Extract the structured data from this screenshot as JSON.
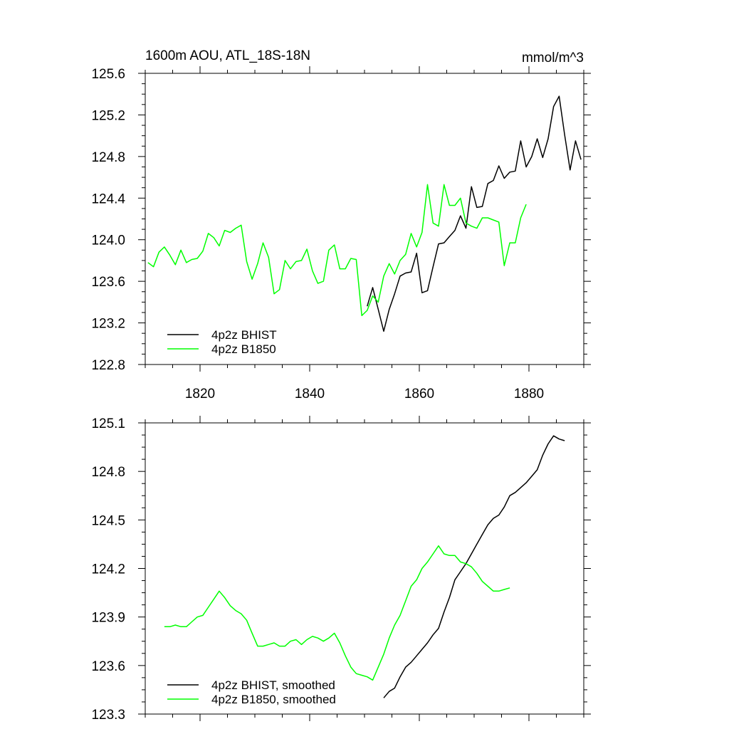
{
  "colors": {
    "bhist": "#000000",
    "b1850": "#00ff00",
    "axis": "#000000"
  },
  "chart_data": [
    {
      "type": "line",
      "title": "1600m AOU, ATL_18S-18N",
      "units": "mmol/m^3",
      "xlim": [
        1810,
        1890
      ],
      "ylim": [
        122.8,
        125.6
      ],
      "xticks": [
        1820,
        1840,
        1860,
        1880
      ],
      "yticks": [
        122.8,
        123.2,
        123.6,
        124.0,
        124.4,
        124.8,
        125.2,
        125.6
      ],
      "ytick_labels": [
        "122.8",
        "123.2",
        "123.6",
        "124.0",
        "124.4",
        "124.8",
        "125.2",
        "125.6"
      ],
      "legend_position": "bottom-left",
      "series": [
        {
          "name": "4p2z BHIST",
          "color": "#000000",
          "x": [
            1850.5,
            1851.5,
            1852.5,
            1853.5,
            1854.5,
            1855.5,
            1856.5,
            1857.5,
            1858.5,
            1859.5,
            1860.5,
            1861.5,
            1862.5,
            1863.5,
            1864.5,
            1865.5,
            1866.5,
            1867.5,
            1868.5,
            1869.5,
            1870.5,
            1871.5,
            1872.5,
            1873.5,
            1874.5,
            1875.5,
            1876.5,
            1877.5,
            1878.5,
            1879.5,
            1880.5,
            1881.5,
            1882.5,
            1883.5,
            1884.5,
            1885.5,
            1886.5,
            1887.5,
            1888.5,
            1889.5
          ],
          "y": [
            123.36,
            123.54,
            123.33,
            123.12,
            123.33,
            123.48,
            123.65,
            123.68,
            123.69,
            123.87,
            123.49,
            123.51,
            123.74,
            123.96,
            123.97,
            124.03,
            124.09,
            124.23,
            124.11,
            124.51,
            124.31,
            124.32,
            124.54,
            124.57,
            124.71,
            124.59,
            124.65,
            124.66,
            124.95,
            124.7,
            124.8,
            124.97,
            124.79,
            124.97,
            125.28,
            125.38,
            125.01,
            124.67,
            124.95,
            124.77
          ]
        },
        {
          "name": "4p2z B1850",
          "color": "#00ff00",
          "x": [
            1810.5,
            1811.5,
            1812.5,
            1813.5,
            1814.5,
            1815.5,
            1816.5,
            1817.5,
            1818.5,
            1819.5,
            1820.5,
            1821.5,
            1822.5,
            1823.5,
            1824.5,
            1825.5,
            1826.5,
            1827.5,
            1828.5,
            1829.5,
            1830.5,
            1831.5,
            1832.5,
            1833.5,
            1834.5,
            1835.5,
            1836.5,
            1837.5,
            1838.5,
            1839.5,
            1840.5,
            1841.5,
            1842.5,
            1843.5,
            1844.5,
            1845.5,
            1846.5,
            1847.5,
            1848.5,
            1849.5,
            1850.5,
            1851.5,
            1852.5,
            1853.5,
            1854.5,
            1855.5,
            1856.5,
            1857.5,
            1858.5,
            1859.5,
            1860.5,
            1861.5,
            1862.5,
            1863.5,
            1864.5,
            1865.5,
            1866.5,
            1867.5,
            1868.5,
            1869.5,
            1870.5,
            1871.5,
            1872.5,
            1873.5,
            1874.5,
            1875.5,
            1876.5,
            1877.5,
            1878.5,
            1879.5
          ],
          "y": [
            123.78,
            123.74,
            123.88,
            123.93,
            123.85,
            123.76,
            123.9,
            123.78,
            123.81,
            123.82,
            123.89,
            124.06,
            124.02,
            123.94,
            124.09,
            124.07,
            124.11,
            124.14,
            123.79,
            123.62,
            123.77,
            123.97,
            123.83,
            123.48,
            123.52,
            123.8,
            123.72,
            123.79,
            123.8,
            123.91,
            123.7,
            123.58,
            123.6,
            123.9,
            123.95,
            123.72,
            123.72,
            123.82,
            123.81,
            123.27,
            123.32,
            123.46,
            123.4,
            123.65,
            123.77,
            123.67,
            123.8,
            123.86,
            124.06,
            123.93,
            124.07,
            124.53,
            124.16,
            124.13,
            124.53,
            124.33,
            124.33,
            124.4,
            124.16,
            124.13,
            124.11,
            124.21,
            124.21,
            124.19,
            124.17,
            123.75,
            123.97,
            123.97,
            124.21,
            124.34
          ]
        }
      ]
    },
    {
      "type": "line",
      "xlim": [
        1810,
        1890
      ],
      "ylim": [
        123.3,
        125.1
      ],
      "xticks": [
        1820,
        1840,
        1860,
        1880
      ],
      "yticks": [
        123.3,
        123.6,
        123.9,
        124.2,
        124.5,
        124.8,
        125.1
      ],
      "ytick_labels": [
        "123.3",
        "123.6",
        "123.9",
        "124.2",
        "124.5",
        "124.8",
        "125.1"
      ],
      "legend_position": "bottom-left",
      "series": [
        {
          "name": "4p2z BHIST, smoothed",
          "color": "#000000",
          "x": [
            1853.5,
            1854.5,
            1855.5,
            1856.5,
            1857.5,
            1858.5,
            1859.5,
            1860.5,
            1861.5,
            1862.5,
            1863.5,
            1864.5,
            1865.5,
            1866.5,
            1867.5,
            1868.5,
            1869.5,
            1870.5,
            1871.5,
            1872.5,
            1873.5,
            1874.5,
            1875.5,
            1876.5,
            1877.5,
            1878.5,
            1879.5,
            1880.5,
            1881.5,
            1882.5,
            1883.5,
            1884.5,
            1885.5,
            1886.5
          ],
          "y": [
            123.4,
            123.44,
            123.46,
            123.53,
            123.59,
            123.62,
            123.66,
            123.7,
            123.74,
            123.79,
            123.83,
            123.93,
            124.02,
            124.13,
            124.18,
            124.23,
            124.29,
            124.35,
            124.41,
            124.47,
            124.51,
            124.53,
            124.58,
            124.65,
            124.67,
            124.7,
            124.73,
            124.77,
            124.81,
            124.9,
            124.97,
            125.02,
            125.0,
            124.99
          ]
        },
        {
          "name": "4p2z B1850, smoothed",
          "color": "#00ff00",
          "x": [
            1813.5,
            1814.5,
            1815.5,
            1816.5,
            1817.5,
            1818.5,
            1819.5,
            1820.5,
            1821.5,
            1822.5,
            1823.5,
            1824.5,
            1825.5,
            1826.5,
            1827.5,
            1828.5,
            1829.5,
            1830.5,
            1831.5,
            1832.5,
            1833.5,
            1834.5,
            1835.5,
            1836.5,
            1837.5,
            1838.5,
            1839.5,
            1840.5,
            1841.5,
            1842.5,
            1843.5,
            1844.5,
            1845.5,
            1846.5,
            1847.5,
            1848.5,
            1849.5,
            1850.5,
            1851.5,
            1852.5,
            1853.5,
            1854.5,
            1855.5,
            1856.5,
            1857.5,
            1858.5,
            1859.5,
            1860.5,
            1861.5,
            1862.5,
            1863.5,
            1864.5,
            1865.5,
            1866.5,
            1867.5,
            1868.5,
            1869.5,
            1870.5,
            1871.5,
            1872.5,
            1873.5,
            1874.5,
            1875.5,
            1876.5
          ],
          "y": [
            123.84,
            123.84,
            123.85,
            123.84,
            123.84,
            123.87,
            123.9,
            123.91,
            123.96,
            124.01,
            124.06,
            124.02,
            123.97,
            123.94,
            123.92,
            123.88,
            123.8,
            123.72,
            123.72,
            123.73,
            123.74,
            123.72,
            123.72,
            123.75,
            123.76,
            123.73,
            123.76,
            123.78,
            123.77,
            123.75,
            123.77,
            123.8,
            123.74,
            123.66,
            123.59,
            123.55,
            123.54,
            123.53,
            123.51,
            123.59,
            123.67,
            123.77,
            123.85,
            123.91,
            124.0,
            124.09,
            124.13,
            124.2,
            124.24,
            124.29,
            124.34,
            124.29,
            124.28,
            124.28,
            124.24,
            124.23,
            124.21,
            124.17,
            124.12,
            124.09,
            124.06,
            124.06,
            124.07,
            124.08
          ]
        }
      ]
    }
  ]
}
